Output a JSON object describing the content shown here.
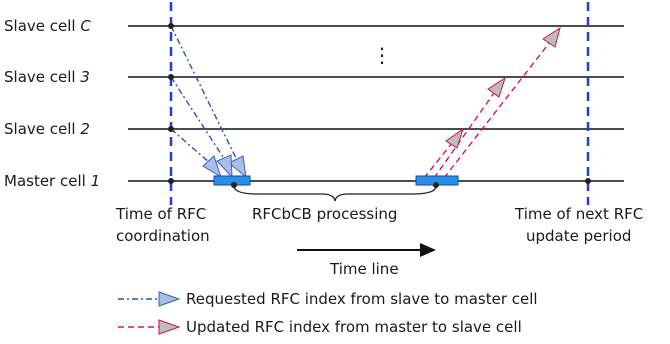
{
  "rows": [
    {
      "label": "Slave cell ",
      "index": "C"
    },
    {
      "label": "Slave cell ",
      "index": "3"
    },
    {
      "label": "Slave cell ",
      "index": "2"
    },
    {
      "label": "Master cell ",
      "index": "1"
    }
  ],
  "ellipsis": "⋮",
  "annotations": {
    "coordination_line1": "Time of RFC",
    "coordination_line2": "coordination",
    "processing": "RFCbCB processing",
    "next_line1": "Time of next RFC",
    "next_line2": "update period",
    "timeline": "Time line"
  },
  "legend": {
    "requested": "Requested RFC index from slave to master cell",
    "updated": "Updated RFC index from master to slave cell"
  },
  "colors": {
    "requested": "#2b4fc4",
    "updated": "#d8174f",
    "dashed_marker": "#1f3fd6",
    "block": "#2a8fe6",
    "arrow_fill_blue": "#a9bde6",
    "arrow_fill_red": "#bcbcbc"
  }
}
